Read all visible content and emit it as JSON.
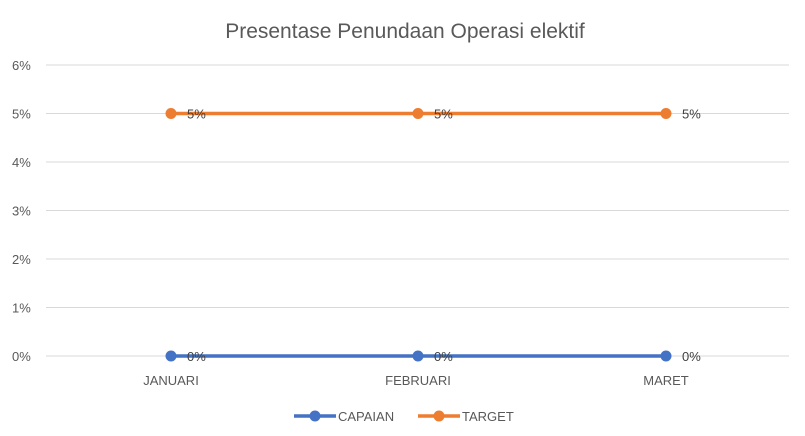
{
  "chart_data": {
    "type": "line",
    "title": "Presentase Penundaan Operasi elektif",
    "categories": [
      "JANUARI",
      "FEBRUARI",
      "MARET"
    ],
    "series": [
      {
        "name": "CAPAIAN",
        "values": [
          0,
          0,
          0
        ],
        "labels": [
          "0%",
          "0%",
          "0%"
        ],
        "color": "#4472c4"
      },
      {
        "name": "TARGET",
        "values": [
          5,
          5,
          5
        ],
        "labels": [
          "5%",
          "5%",
          "5%"
        ],
        "color": "#ed7d31"
      }
    ],
    "ylim": [
      0,
      6
    ],
    "yticks": [
      "0%",
      "1%",
      "2%",
      "3%",
      "4%",
      "5%",
      "6%"
    ],
    "xlabel": "",
    "ylabel": "",
    "grid": true,
    "legend_position": "bottom"
  }
}
